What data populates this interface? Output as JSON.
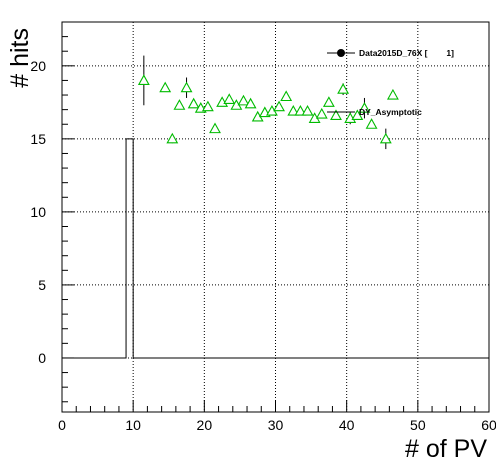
{
  "chart_data": {
    "type": "scatter",
    "xlabel": "# of PV",
    "ylabel": "# hits",
    "xlim": [
      0,
      60
    ],
    "ylim": [
      -3.7,
      23
    ],
    "x_ticks": [
      0,
      10,
      20,
      30,
      40,
      50,
      60
    ],
    "y_ticks": [
      0,
      5,
      10,
      15,
      20
    ],
    "grid": true,
    "legend_position": "top-right",
    "series": [
      {
        "name": "Data2015D_76X [        1]",
        "kind": "histogram-step",
        "color": "#000000",
        "steps": [
          {
            "x0": 0,
            "x1": 9,
            "y": 0
          },
          {
            "x0": 9,
            "x1": 10,
            "y": 15
          },
          {
            "x0": 10,
            "x1": 60,
            "y": 0
          }
        ]
      },
      {
        "name": "DY_Asymptotic",
        "kind": "markers",
        "marker": "open-triangle",
        "color": "#00bb00",
        "errorbar_color": "#000000",
        "points": [
          {
            "x": 11.5,
            "y": 19.0,
            "err": 1.7
          },
          {
            "x": 14.5,
            "y": 18.5,
            "err": 0
          },
          {
            "x": 15.5,
            "y": 15.0,
            "err": 0.3
          },
          {
            "x": 16.5,
            "y": 17.3,
            "err": 0
          },
          {
            "x": 17.5,
            "y": 18.5,
            "err": 0.7
          },
          {
            "x": 18.5,
            "y": 17.4,
            "err": 0
          },
          {
            "x": 19.5,
            "y": 17.1,
            "err": 0
          },
          {
            "x": 20.5,
            "y": 17.2,
            "err": 0
          },
          {
            "x": 21.5,
            "y": 15.7,
            "err": 0
          },
          {
            "x": 22.5,
            "y": 17.5,
            "err": 0
          },
          {
            "x": 23.5,
            "y": 17.7,
            "err": 0
          },
          {
            "x": 24.5,
            "y": 17.3,
            "err": 0
          },
          {
            "x": 25.5,
            "y": 17.6,
            "err": 0
          },
          {
            "x": 26.5,
            "y": 17.4,
            "err": 0
          },
          {
            "x": 27.5,
            "y": 16.5,
            "err": 0
          },
          {
            "x": 28.5,
            "y": 16.8,
            "err": 0
          },
          {
            "x": 29.5,
            "y": 16.9,
            "err": 0
          },
          {
            "x": 30.5,
            "y": 17.2,
            "err": 0
          },
          {
            "x": 31.5,
            "y": 17.9,
            "err": 0
          },
          {
            "x": 32.5,
            "y": 16.9,
            "err": 0
          },
          {
            "x": 33.5,
            "y": 16.9,
            "err": 0
          },
          {
            "x": 34.5,
            "y": 16.9,
            "err": 0
          },
          {
            "x": 35.5,
            "y": 16.4,
            "err": 0
          },
          {
            "x": 36.5,
            "y": 16.7,
            "err": 0
          },
          {
            "x": 37.5,
            "y": 17.5,
            "err": 0
          },
          {
            "x": 38.5,
            "y": 16.6,
            "err": 0
          },
          {
            "x": 39.5,
            "y": 18.4,
            "err": 0.4
          },
          {
            "x": 40.5,
            "y": 16.4,
            "err": 0.4
          },
          {
            "x": 41.5,
            "y": 16.6,
            "err": 0
          },
          {
            "x": 42.5,
            "y": 17.1,
            "err": 0.7
          },
          {
            "x": 43.5,
            "y": 16.0,
            "err": 0
          },
          {
            "x": 45.5,
            "y": 15.0,
            "err": 0.7
          },
          {
            "x": 46.5,
            "y": 18.0,
            "err": 0
          }
        ]
      }
    ]
  }
}
